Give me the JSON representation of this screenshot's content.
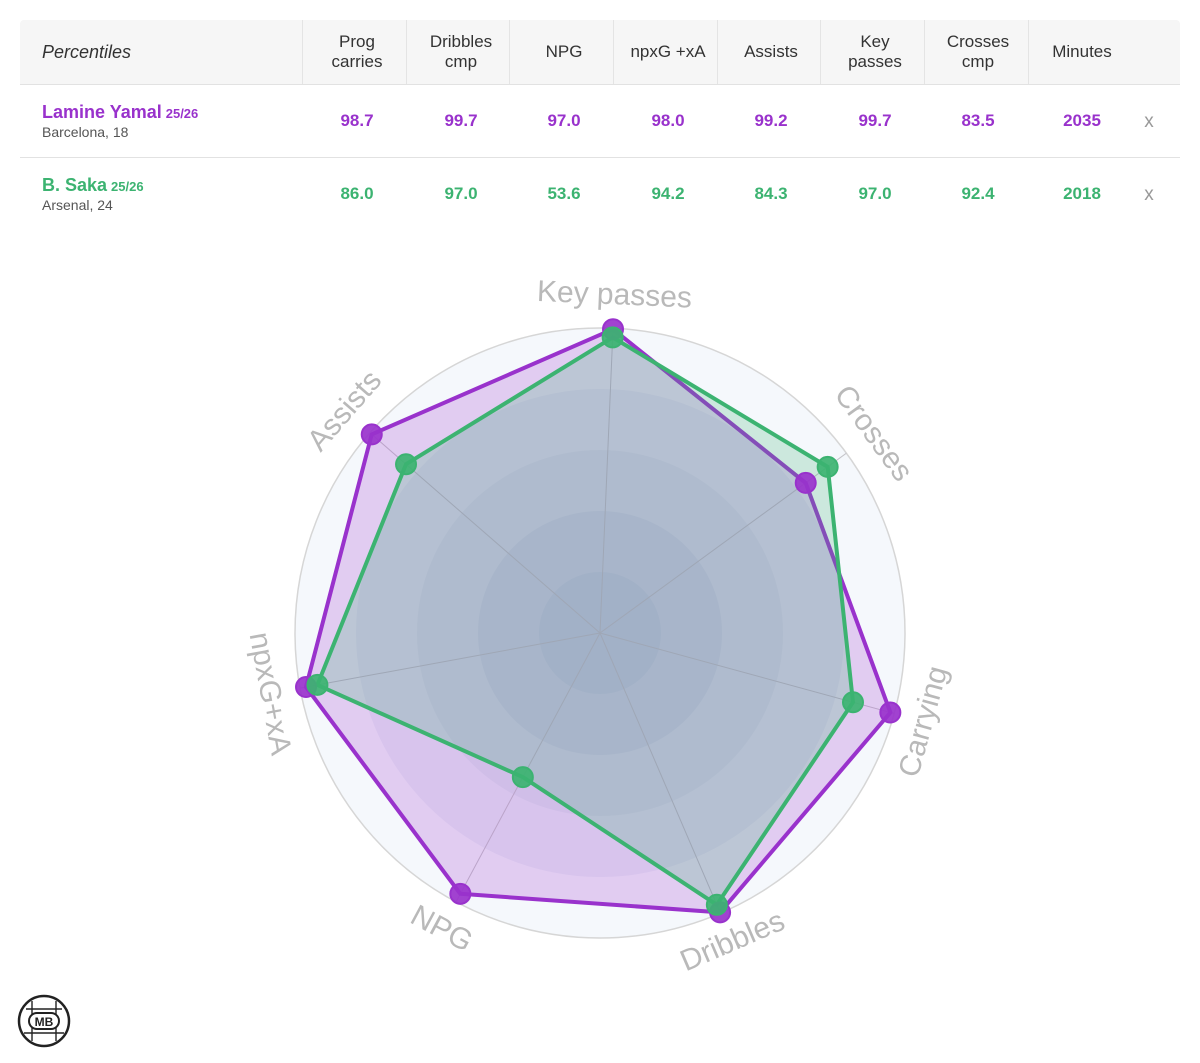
{
  "table": {
    "corner_label": "Percentiles",
    "columns": [
      "Prog\ncarries",
      "Dribbles\ncmp",
      "NPG",
      "npxG +xA",
      "Assists",
      "Key\npasses",
      "Crosses\ncmp",
      "Minutes"
    ],
    "remove_label": "x",
    "players": [
      {
        "name": "Lamine Yamal",
        "season": "25/26",
        "club": "Barcelona, 18",
        "color": "#9932cc",
        "values": [
          "98.7",
          "99.7",
          "97.0",
          "98.0",
          "99.2",
          "99.7",
          "83.5",
          "2035"
        ]
      },
      {
        "name": "B. Saka",
        "season": "25/26",
        "club": "Arsenal, 24",
        "color": "#3cb371",
        "values": [
          "86.0",
          "97.0",
          "53.6",
          "94.2",
          "84.3",
          "97.0",
          "92.4",
          "2018"
        ]
      }
    ]
  },
  "chart_data": {
    "type": "radar",
    "axes": [
      "Key passes",
      "Crosses",
      "Carrying",
      "Dribbles",
      "NPG",
      "npxG+xA",
      "Assists"
    ],
    "range": [
      0,
      100
    ],
    "series": [
      {
        "name": "Lamine Yamal",
        "color": "#9932cc",
        "values": [
          99.7,
          83.5,
          98.7,
          99.7,
          97.0,
          98.0,
          99.2
        ]
      },
      {
        "name": "B. Saka",
        "color": "#3cb371",
        "values": [
          97.0,
          92.4,
          86.0,
          97.0,
          53.6,
          94.2,
          84.3
        ]
      }
    ]
  },
  "logo": {
    "text": "MB"
  }
}
